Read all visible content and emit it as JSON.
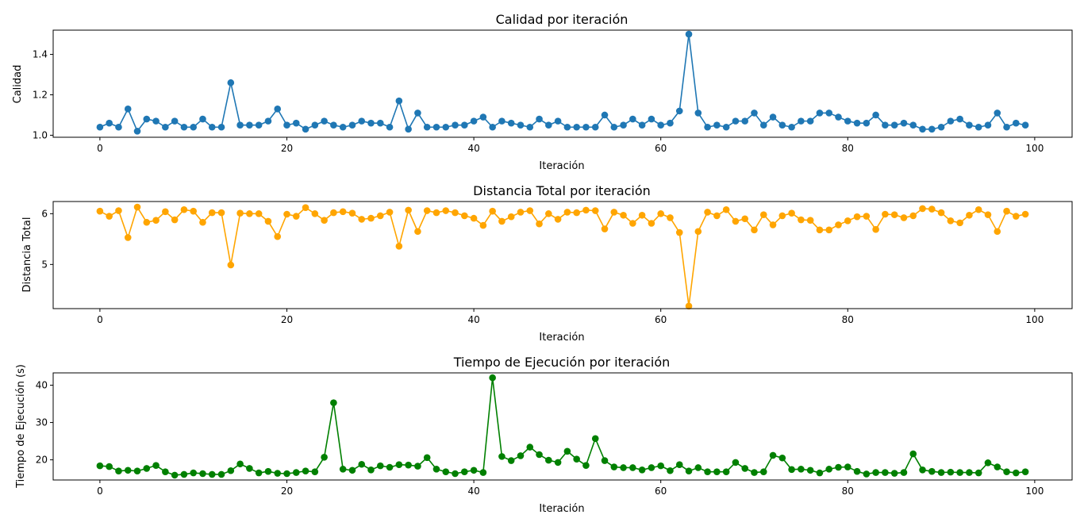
{
  "chart_data": [
    {
      "type": "line",
      "title": "Calidad por iteración",
      "xlabel": "Iteración",
      "ylabel": "Calidad",
      "xlim": [
        -5,
        104
      ],
      "ylim": [
        0.99,
        1.52
      ],
      "xticks": [
        0,
        20,
        40,
        60,
        80,
        100
      ],
      "yticks": [
        1.0,
        1.2,
        1.4
      ],
      "ytick_labels": [
        "1.0",
        "1.2",
        "1.4"
      ],
      "color": "#1f77b4",
      "grid": false,
      "x_start": 0,
      "values": [
        1.04,
        1.06,
        1.04,
        1.13,
        1.02,
        1.08,
        1.07,
        1.04,
        1.07,
        1.04,
        1.04,
        1.08,
        1.04,
        1.04,
        1.26,
        1.05,
        1.05,
        1.05,
        1.07,
        1.13,
        1.05,
        1.06,
        1.03,
        1.05,
        1.07,
        1.05,
        1.04,
        1.05,
        1.07,
        1.06,
        1.06,
        1.04,
        1.17,
        1.03,
        1.11,
        1.04,
        1.04,
        1.04,
        1.05,
        1.05,
        1.07,
        1.09,
        1.04,
        1.07,
        1.06,
        1.05,
        1.04,
        1.08,
        1.05,
        1.07,
        1.04,
        1.04,
        1.04,
        1.04,
        1.1,
        1.04,
        1.05,
        1.08,
        1.05,
        1.08,
        1.05,
        1.06,
        1.12,
        1.5,
        1.11,
        1.04,
        1.05,
        1.04,
        1.07,
        1.07,
        1.11,
        1.05,
        1.09,
        1.05,
        1.04,
        1.07,
        1.07,
        1.11,
        1.11,
        1.09,
        1.07,
        1.06,
        1.06,
        1.1,
        1.05,
        1.05,
        1.06,
        1.05,
        1.03,
        1.03,
        1.04,
        1.07,
        1.08,
        1.05,
        1.04,
        1.05,
        1.11,
        1.04,
        1.06,
        1.05
      ]
    },
    {
      "type": "line",
      "title": "Distancia Total por iteración",
      "xlabel": "Iteración",
      "ylabel": "Distancia Total",
      "xlim": [
        -5,
        104
      ],
      "ylim": [
        4.13,
        6.24
      ],
      "xticks": [
        0,
        20,
        40,
        60,
        80,
        100
      ],
      "yticks": [
        5,
        6
      ],
      "ytick_labels": [
        "5",
        "6"
      ],
      "color": "#ffa500",
      "grid": false,
      "x_start": 0,
      "values": [
        6.05,
        5.95,
        6.06,
        5.53,
        6.13,
        5.83,
        5.87,
        6.04,
        5.88,
        6.08,
        6.05,
        5.83,
        6.02,
        6.02,
        4.99,
        6.01,
        6.0,
        6.0,
        5.85,
        5.55,
        5.99,
        5.95,
        6.12,
        6.0,
        5.87,
        6.02,
        6.04,
        6.01,
        5.89,
        5.91,
        5.96,
        6.03,
        5.36,
        6.07,
        5.65,
        6.06,
        6.02,
        6.06,
        6.02,
        5.96,
        5.91,
        5.77,
        6.05,
        5.85,
        5.94,
        6.03,
        6.06,
        5.8,
        6.0,
        5.89,
        6.03,
        6.02,
        6.07,
        6.06,
        5.7,
        6.03,
        5.97,
        5.81,
        5.97,
        5.81,
        6.0,
        5.92,
        5.63,
        4.18,
        5.65,
        6.03,
        5.96,
        6.08,
        5.85,
        5.9,
        5.68,
        5.98,
        5.78,
        5.96,
        6.01,
        5.88,
        5.87,
        5.68,
        5.68,
        5.78,
        5.86,
        5.94,
        5.95,
        5.69,
        5.99,
        5.98,
        5.92,
        5.96,
        6.1,
        6.09,
        6.02,
        5.86,
        5.82,
        5.97,
        6.08,
        5.98,
        5.65,
        6.05,
        5.95,
        5.99
      ]
    },
    {
      "type": "line",
      "title": "Tiempo de Ejecución por iteración",
      "xlabel": "Iteración",
      "ylabel": "Tiempo de Ejecución (s)",
      "xlim": [
        -5,
        104
      ],
      "ylim": [
        14.6,
        43.3
      ],
      "xticks": [
        0,
        20,
        40,
        60,
        80,
        100
      ],
      "yticks": [
        20,
        30,
        40
      ],
      "ytick_labels": [
        "20",
        "30",
        "40"
      ],
      "color": "#008000",
      "grid": false,
      "x_start": 0,
      "values": [
        18.4,
        18.2,
        17.0,
        17.2,
        17.0,
        17.7,
        18.5,
        16.8,
        15.9,
        16.1,
        16.5,
        16.3,
        16.1,
        16.1,
        17.1,
        18.9,
        17.7,
        16.5,
        16.9,
        16.4,
        16.3,
        16.6,
        17.0,
        16.8,
        20.7,
        35.3,
        17.5,
        17.2,
        18.8,
        17.3,
        18.4,
        18.0,
        18.7,
        18.6,
        18.3,
        20.6,
        17.5,
        16.8,
        16.3,
        16.8,
        17.2,
        16.6,
        42.0,
        20.9,
        19.8,
        21.1,
        23.4,
        21.4,
        19.9,
        19.3,
        22.3,
        20.2,
        18.5,
        25.7,
        19.8,
        18.1,
        17.9,
        17.9,
        17.3,
        17.9,
        18.4,
        17.1,
        18.7,
        17.0,
        17.9,
        16.8,
        16.8,
        16.8,
        19.3,
        17.7,
        16.6,
        16.8,
        21.2,
        20.5,
        17.4,
        17.5,
        17.2,
        16.5,
        17.5,
        18.0,
        18.1,
        16.9,
        16.2,
        16.6,
        16.6,
        16.4,
        16.6,
        21.6,
        17.3,
        16.9,
        16.6,
        16.7,
        16.6,
        16.6,
        16.5,
        19.2,
        18.1,
        16.8,
        16.5,
        16.8
      ]
    }
  ]
}
